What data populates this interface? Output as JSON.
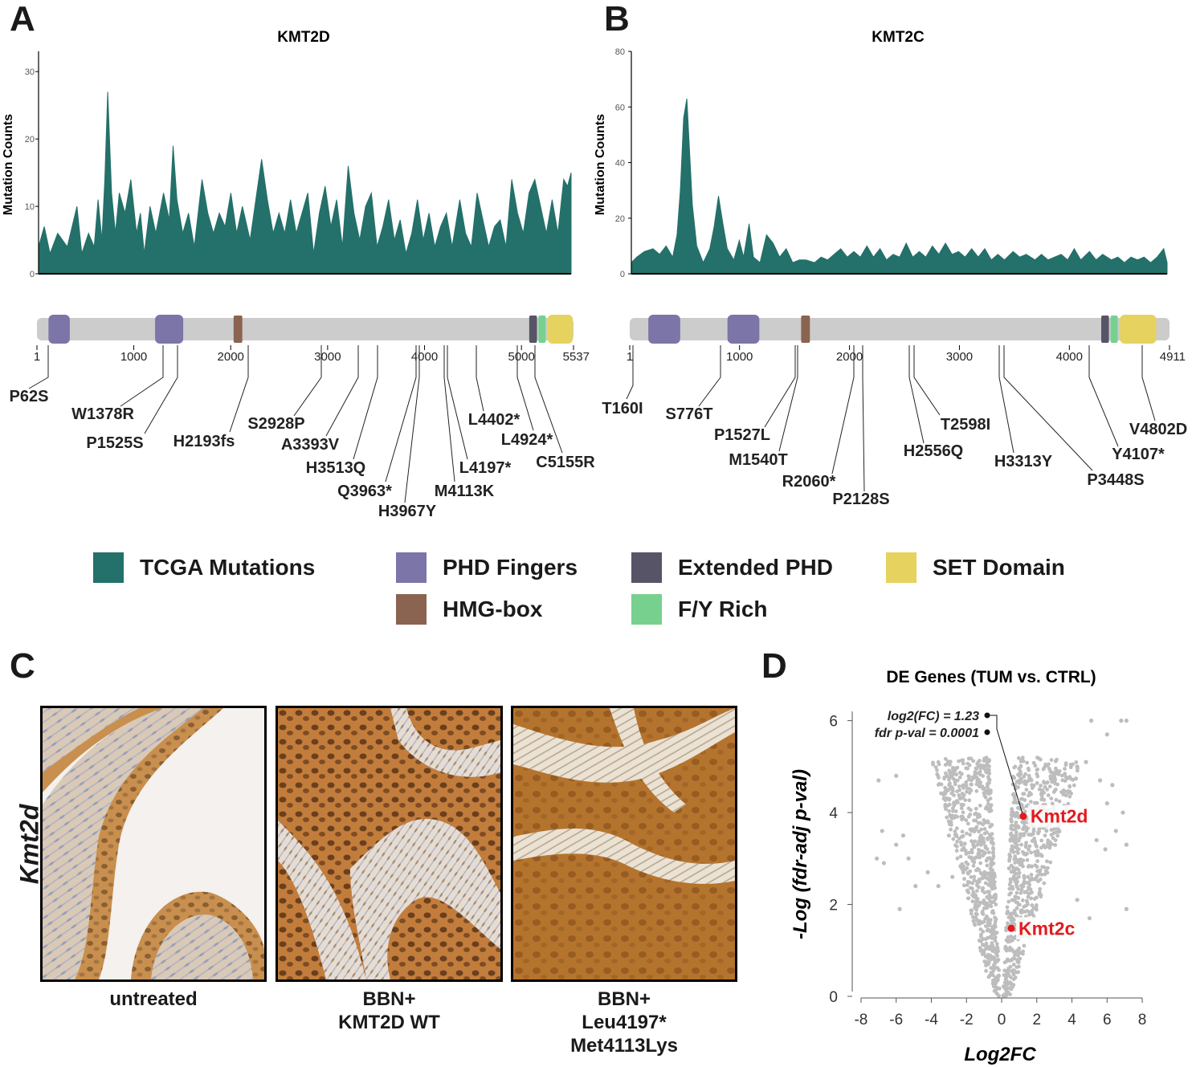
{
  "panels": {
    "a": "A",
    "b": "B",
    "c": "C",
    "d": "D"
  },
  "colors": {
    "tcga": "#24706a",
    "phd": "#7b75a8",
    "hmg": "#8a6450",
    "extended_phd": "#585468",
    "fy_rich": "#78d08f",
    "set": "#e6d25e",
    "backbone": "#cccccc",
    "volcano_point": "#bdbdbd",
    "highlight": "#e41a1c"
  },
  "legend": {
    "tcga": "TCGA Mutations",
    "phd": "PHD Fingers",
    "extended_phd": "Extended PHD",
    "set": "SET Domain",
    "hmg": "HMG-box",
    "fy_rich": "F/Y Rich"
  },
  "chart_data": [
    {
      "type": "area",
      "id": "kmt2d",
      "title": "KMT2D",
      "ylabel": "Mutation Counts",
      "ylim": [
        0,
        33
      ],
      "yticks": [
        "0",
        "10",
        "20",
        "30"
      ],
      "protein_length": 5537,
      "xticks": [
        "1",
        "1000",
        "2000",
        "3000",
        "4000",
        "5000",
        "5537"
      ],
      "profile": [
        [
          1,
          4
        ],
        [
          60,
          7
        ],
        [
          120,
          3
        ],
        [
          200,
          6
        ],
        [
          300,
          4
        ],
        [
          400,
          10
        ],
        [
          450,
          3
        ],
        [
          520,
          6
        ],
        [
          580,
          4
        ],
        [
          620,
          11
        ],
        [
          660,
          5
        ],
        [
          690,
          14
        ],
        [
          720,
          27
        ],
        [
          760,
          12
        ],
        [
          800,
          6
        ],
        [
          840,
          12
        ],
        [
          900,
          9
        ],
        [
          960,
          14
        ],
        [
          1020,
          6
        ],
        [
          1060,
          9
        ],
        [
          1100,
          3
        ],
        [
          1160,
          10
        ],
        [
          1220,
          6
        ],
        [
          1300,
          12
        ],
        [
          1360,
          8
        ],
        [
          1400,
          19
        ],
        [
          1440,
          11
        ],
        [
          1500,
          6
        ],
        [
          1560,
          9
        ],
        [
          1620,
          4
        ],
        [
          1700,
          14
        ],
        [
          1760,
          9
        ],
        [
          1820,
          6
        ],
        [
          1880,
          9
        ],
        [
          1940,
          7
        ],
        [
          2000,
          12
        ],
        [
          2060,
          6
        ],
        [
          2120,
          10
        ],
        [
          2200,
          5
        ],
        [
          2260,
          11
        ],
        [
          2320,
          17
        ],
        [
          2380,
          11
        ],
        [
          2440,
          6
        ],
        [
          2500,
          9
        ],
        [
          2560,
          6
        ],
        [
          2620,
          11
        ],
        [
          2680,
          6
        ],
        [
          2740,
          9
        ],
        [
          2800,
          12
        ],
        [
          2860,
          3
        ],
        [
          2920,
          9
        ],
        [
          2980,
          13
        ],
        [
          3040,
          7
        ],
        [
          3100,
          11
        ],
        [
          3160,
          4
        ],
        [
          3220,
          16
        ],
        [
          3280,
          9
        ],
        [
          3340,
          5
        ],
        [
          3400,
          10
        ],
        [
          3460,
          12
        ],
        [
          3520,
          4
        ],
        [
          3580,
          7
        ],
        [
          3640,
          11
        ],
        [
          3700,
          5
        ],
        [
          3760,
          8
        ],
        [
          3820,
          3
        ],
        [
          3880,
          6
        ],
        [
          3940,
          11
        ],
        [
          4000,
          5
        ],
        [
          4060,
          9
        ],
        [
          4120,
          4
        ],
        [
          4180,
          7
        ],
        [
          4240,
          9
        ],
        [
          4300,
          4
        ],
        [
          4380,
          11
        ],
        [
          4440,
          6
        ],
        [
          4500,
          4
        ],
        [
          4560,
          12
        ],
        [
          4620,
          8
        ],
        [
          4680,
          4
        ],
        [
          4740,
          7
        ],
        [
          4800,
          8
        ],
        [
          4860,
          4
        ],
        [
          4920,
          14
        ],
        [
          4980,
          9
        ],
        [
          5040,
          6
        ],
        [
          5100,
          12
        ],
        [
          5160,
          14
        ],
        [
          5220,
          10
        ],
        [
          5280,
          6
        ],
        [
          5340,
          11
        ],
        [
          5400,
          6
        ],
        [
          5460,
          14
        ],
        [
          5500,
          13
        ],
        [
          5537,
          15
        ]
      ],
      "domains": [
        {
          "type": "phd",
          "start": 120,
          "end": 340
        },
        {
          "type": "phd",
          "start": 1220,
          "end": 1510
        },
        {
          "type": "hmg",
          "start": 2030,
          "end": 2120
        },
        {
          "type": "extended_phd",
          "start": 5080,
          "end": 5160
        },
        {
          "type": "fy_rich",
          "start": 5175,
          "end": 5250
        },
        {
          "type": "set",
          "start": 5270,
          "end": 5530
        }
      ],
      "mutations": [
        "P62S",
        "W1378R",
        "P1525S",
        "H2193fs",
        "S2928P",
        "A3393V",
        "H3513Q",
        "Q3963*",
        "H3967Y",
        "M4113K",
        "L4197*",
        "L4402*",
        "L4924*",
        "C5155R"
      ]
    },
    {
      "type": "area",
      "id": "kmt2c",
      "title": "KMT2C",
      "ylabel": "Mutation Counts",
      "ylim": [
        0,
        80
      ],
      "yticks": [
        "0",
        "20",
        "40",
        "60",
        "80"
      ],
      "protein_length": 4911,
      "xticks": [
        "1",
        "1000",
        "2000",
        "3000",
        "4000",
        "4911"
      ],
      "profile": [
        [
          1,
          4
        ],
        [
          50,
          6
        ],
        [
          120,
          8
        ],
        [
          200,
          9
        ],
        [
          260,
          7
        ],
        [
          320,
          10
        ],
        [
          380,
          6
        ],
        [
          420,
          14
        ],
        [
          450,
          30
        ],
        [
          480,
          56
        ],
        [
          510,
          63
        ],
        [
          560,
          25
        ],
        [
          600,
          10
        ],
        [
          660,
          4
        ],
        [
          720,
          9
        ],
        [
          760,
          17
        ],
        [
          800,
          28
        ],
        [
          840,
          18
        ],
        [
          880,
          9
        ],
        [
          940,
          5
        ],
        [
          990,
          12
        ],
        [
          1030,
          6
        ],
        [
          1080,
          18
        ],
        [
          1120,
          6
        ],
        [
          1180,
          4
        ],
        [
          1240,
          14
        ],
        [
          1300,
          11
        ],
        [
          1360,
          6
        ],
        [
          1420,
          9
        ],
        [
          1480,
          4
        ],
        [
          1540,
          5
        ],
        [
          1600,
          5
        ],
        [
          1680,
          4
        ],
        [
          1740,
          6
        ],
        [
          1800,
          5
        ],
        [
          1860,
          7
        ],
        [
          1920,
          9
        ],
        [
          1980,
          6
        ],
        [
          2040,
          8
        ],
        [
          2100,
          6
        ],
        [
          2160,
          10
        ],
        [
          2220,
          6
        ],
        [
          2280,
          9
        ],
        [
          2340,
          5
        ],
        [
          2400,
          7
        ],
        [
          2460,
          6
        ],
        [
          2520,
          11
        ],
        [
          2580,
          6
        ],
        [
          2640,
          8
        ],
        [
          2700,
          6
        ],
        [
          2760,
          10
        ],
        [
          2820,
          7
        ],
        [
          2880,
          11
        ],
        [
          2940,
          7
        ],
        [
          3000,
          8
        ],
        [
          3060,
          6
        ],
        [
          3120,
          9
        ],
        [
          3180,
          6
        ],
        [
          3240,
          9
        ],
        [
          3300,
          5
        ],
        [
          3360,
          7
        ],
        [
          3420,
          5
        ],
        [
          3500,
          8
        ],
        [
          3560,
          6
        ],
        [
          3620,
          7
        ],
        [
          3700,
          5
        ],
        [
          3760,
          7
        ],
        [
          3820,
          5
        ],
        [
          3880,
          6
        ],
        [
          3940,
          7
        ],
        [
          4000,
          5
        ],
        [
          4060,
          9
        ],
        [
          4120,
          5
        ],
        [
          4200,
          8
        ],
        [
          4260,
          5
        ],
        [
          4320,
          7
        ],
        [
          4400,
          5
        ],
        [
          4460,
          6
        ],
        [
          4520,
          4
        ],
        [
          4580,
          6
        ],
        [
          4640,
          5
        ],
        [
          4700,
          6
        ],
        [
          4760,
          4
        ],
        [
          4820,
          6
        ],
        [
          4880,
          9
        ],
        [
          4911,
          4
        ]
      ],
      "domains": [
        {
          "type": "phd",
          "start": 170,
          "end": 460
        },
        {
          "type": "phd",
          "start": 890,
          "end": 1180
        },
        {
          "type": "hmg",
          "start": 1560,
          "end": 1640
        },
        {
          "type": "extended_phd",
          "start": 4290,
          "end": 4360
        },
        {
          "type": "fy_rich",
          "start": 4375,
          "end": 4440
        },
        {
          "type": "set",
          "start": 4460,
          "end": 4790
        }
      ],
      "mutations": [
        "T160I",
        "S776T",
        "P1527L",
        "M1540T",
        "R2060*",
        "P2128S",
        "T2598I",
        "H2556Q",
        "H3313Y",
        "P3448S",
        "Y4107*",
        "V4802D"
      ]
    },
    {
      "type": "scatter",
      "id": "volcano",
      "title": "DE Genes (TUM vs. CTRL)",
      "xlabel": "Log2FC",
      "ylabel": "-Log (fdr-adj p-val)",
      "xlim": [
        -8.5,
        8.5
      ],
      "ylim": [
        0,
        6.5
      ],
      "xticks": [
        "-8",
        "-6",
        "-4",
        "-2",
        "0",
        "2",
        "4",
        "6",
        "8"
      ],
      "yticks": [
        "0",
        "2",
        "4",
        "6"
      ],
      "highlights": [
        {
          "label": "Kmt2d",
          "x": 1.23,
          "y": 3.92
        },
        {
          "label": "Kmt2c",
          "x": 0.55,
          "y": 1.48
        }
      ],
      "annotation": {
        "line1": "log2(FC) = 1.23",
        "line2": "fdr p-val = 0.0001"
      },
      "outliers": [
        [
          -7.0,
          4.7
        ],
        [
          -6.0,
          4.8
        ],
        [
          -6.8,
          3.6
        ],
        [
          -7.1,
          3.0
        ],
        [
          -6.7,
          2.9
        ],
        [
          -6.0,
          3.3
        ],
        [
          -5.6,
          3.5
        ],
        [
          -5.3,
          3.0
        ],
        [
          -5.8,
          1.9
        ],
        [
          -4.9,
          2.4
        ],
        [
          -4.2,
          2.7
        ],
        [
          -3.6,
          2.4
        ],
        [
          -3.0,
          3.5
        ],
        [
          -2.8,
          2.6
        ],
        [
          5.0,
          1.7
        ],
        [
          4.3,
          2.1
        ],
        [
          5.4,
          3.4
        ],
        [
          5.9,
          3.2
        ],
        [
          6.5,
          3.6
        ],
        [
          6.3,
          4.6
        ],
        [
          6.9,
          4.0
        ],
        [
          7.1,
          3.3
        ],
        [
          7.1,
          1.9
        ],
        [
          6.8,
          6.0
        ],
        [
          7.1,
          6.0
        ],
        [
          6.0,
          5.7
        ],
        [
          6.0,
          4.2
        ],
        [
          5.6,
          4.7
        ],
        [
          5.1,
          6.0
        ],
        [
          4.8,
          5.1
        ],
        [
          4.3,
          5.0
        ]
      ]
    }
  ],
  "tissue": {
    "stain": "Kmt2d",
    "captions": [
      {
        "line1": "untreated",
        "line2": "",
        "line3": ""
      },
      {
        "line1": "BBN+",
        "line2": "KMT2D WT",
        "line3": ""
      },
      {
        "line1": "BBN+",
        "line2": "Leu4197*",
        "line3": "Met4113Lys"
      }
    ]
  }
}
